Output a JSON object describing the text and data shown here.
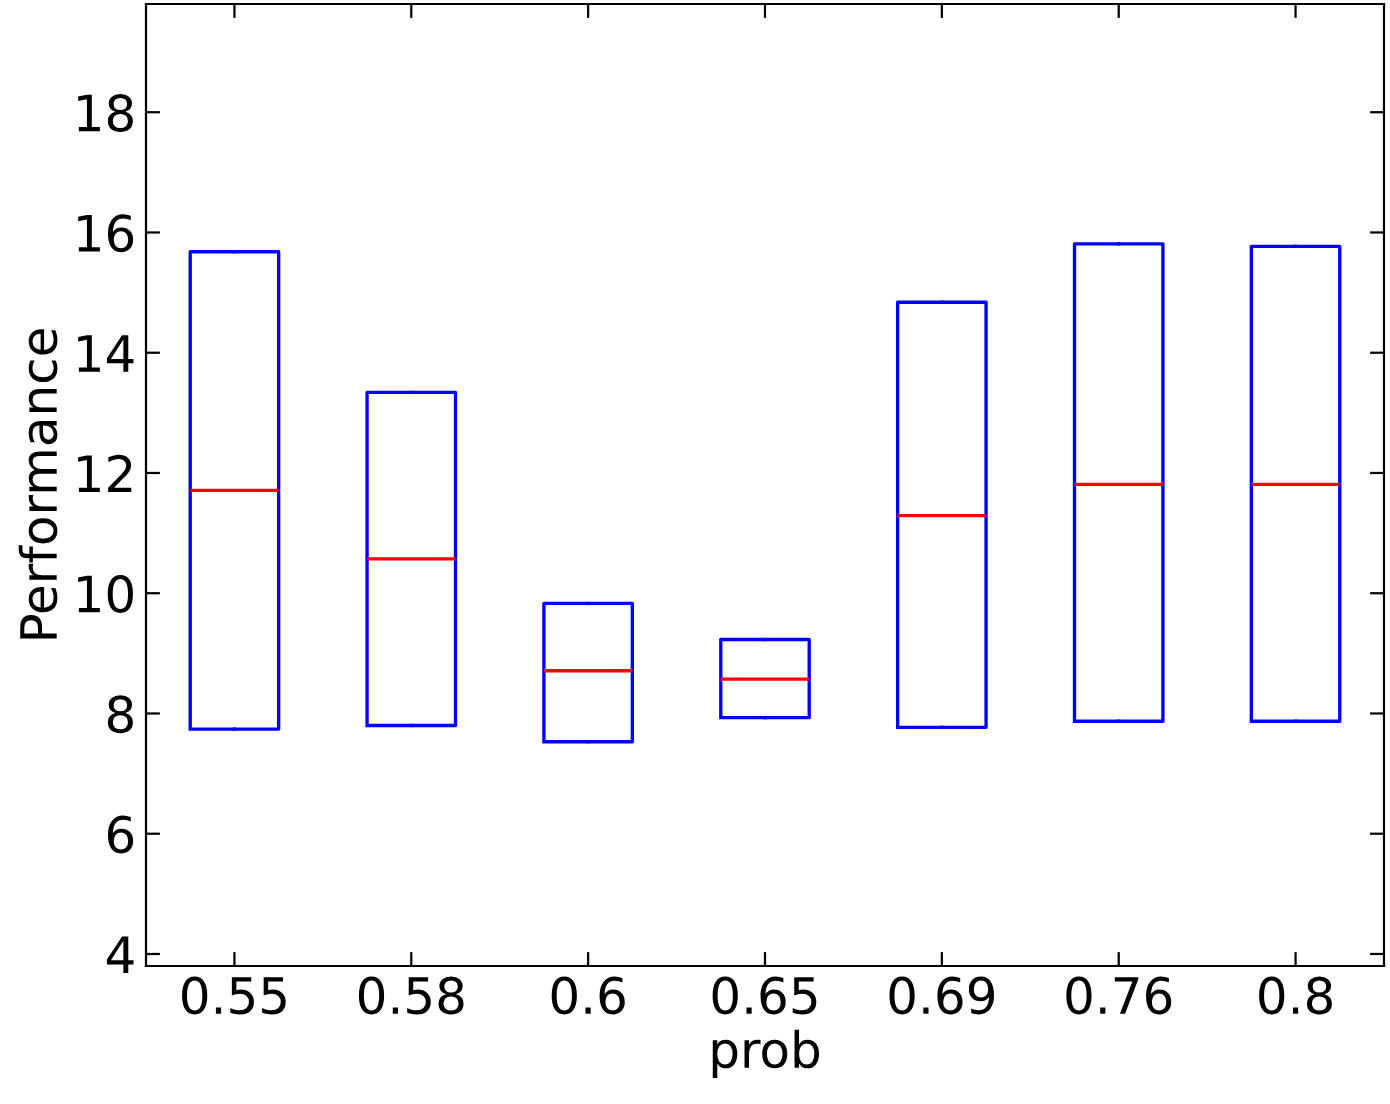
{
  "chart_data": {
    "type": "box",
    "xlabel": "prob",
    "ylabel": "Performance",
    "categories": [
      "0.55",
      "0.58",
      "0.6",
      "0.65",
      "0.69",
      "0.76",
      "0.8"
    ],
    "color": "#0000ff",
    "boxes": [
      {
        "low": 7.74,
        "q1": 7.74,
        "median": 11.71,
        "q3": 15.68,
        "high": 15.68
      },
      {
        "low": 7.8,
        "q1": 7.8,
        "median": 10.57,
        "q3": 13.34,
        "high": 13.34
      },
      {
        "low": 7.53,
        "q1": 7.53,
        "median": 8.71,
        "q3": 9.83,
        "high": 9.83
      },
      {
        "low": 7.93,
        "q1": 7.93,
        "median": 8.57,
        "q3": 9.23,
        "high": 9.23
      },
      {
        "low": 7.77,
        "q1": 7.77,
        "median": 11.29,
        "q3": 14.84,
        "high": 14.84
      },
      {
        "low": 7.87,
        "q1": 7.87,
        "median": 11.81,
        "q3": 15.81,
        "high": 15.81
      },
      {
        "low": 7.87,
        "q1": 7.87,
        "median": 11.81,
        "q3": 15.77,
        "high": 15.77
      }
    ],
    "ylim": [
      3.8,
      19.8
    ],
    "yticks": [
      4,
      6,
      8,
      10,
      12,
      14,
      16,
      18
    ],
    "grid": false
  }
}
